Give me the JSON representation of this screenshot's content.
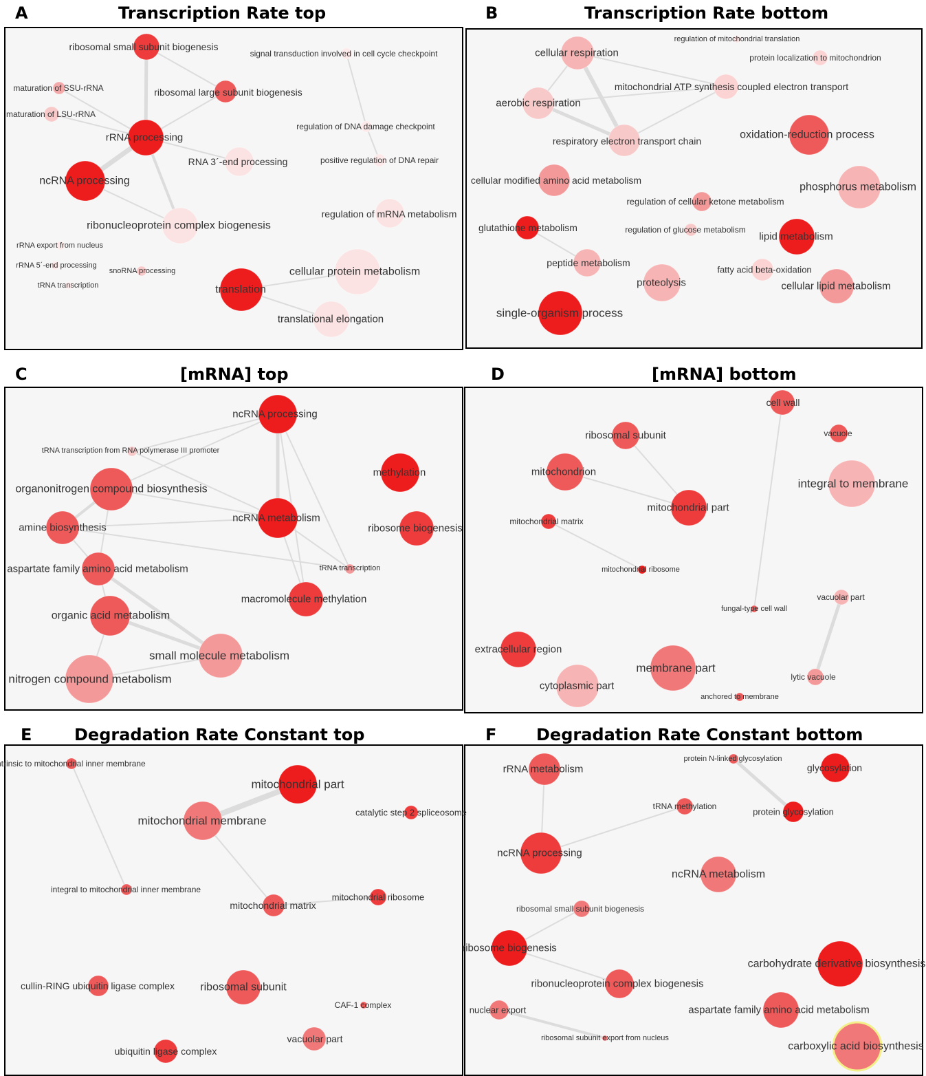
{
  "panels": [
    {
      "letter": "A",
      "title": "Transcription Rate  top",
      "nodes": [
        {
          "id": "a1",
          "label": "ribosomal small subunit biogenesis"
        },
        {
          "id": "a2",
          "label": "maturation of SSU-rRNA"
        },
        {
          "id": "a3",
          "label": "maturation of LSU-rRNA"
        },
        {
          "id": "a4",
          "label": "ribosomal large subunit biogenesis"
        },
        {
          "id": "a5",
          "label": "rRNA processing"
        },
        {
          "id": "a6",
          "label": "ncRNA processing"
        },
        {
          "id": "a7",
          "label": "RNA 3´-end processing"
        },
        {
          "id": "a8",
          "label": "ribonucleoprotein complex biogenesis"
        },
        {
          "id": "a9",
          "label": "signal transduction involved in cell cycle checkpoint"
        },
        {
          "id": "a10",
          "label": "regulation of DNA damage checkpoint"
        },
        {
          "id": "a11",
          "label": "positive regulation of DNA repair"
        },
        {
          "id": "a12",
          "label": "regulation of mRNA metabolism"
        },
        {
          "id": "a13",
          "label": "rRNA export from nucleus"
        },
        {
          "id": "a14",
          "label": "rRNA 5´-end processing"
        },
        {
          "id": "a15",
          "label": "tRNA transcription"
        },
        {
          "id": "a16",
          "label": "snoRNA processing"
        },
        {
          "id": "a17",
          "label": "translation"
        },
        {
          "id": "a18",
          "label": "cellular protein metabolism"
        },
        {
          "id": "a19",
          "label": "translational elongation"
        }
      ],
      "edges": [
        [
          "a1",
          "a5"
        ],
        [
          "a1",
          "a4"
        ],
        [
          "a4",
          "a5"
        ],
        [
          "a5",
          "a6"
        ],
        [
          "a5",
          "a7"
        ],
        [
          "a5",
          "a8"
        ],
        [
          "a2",
          "a5"
        ],
        [
          "a3",
          "a5"
        ],
        [
          "a6",
          "a8"
        ],
        [
          "a9",
          "a10"
        ],
        [
          "a10",
          "a11"
        ],
        [
          "a17",
          "a18"
        ],
        [
          "a17",
          "a19"
        ]
      ]
    },
    {
      "letter": "B",
      "title": "Transcription Rate  bottom",
      "nodes": [
        {
          "id": "b1",
          "label": "cellular respiration"
        },
        {
          "id": "b2",
          "label": "regulation of mitochondrial translation"
        },
        {
          "id": "b3",
          "label": "protein localization to mitochondrion"
        },
        {
          "id": "b4",
          "label": "mitochondrial ATP synthesis coupled electron transport"
        },
        {
          "id": "b5",
          "label": "aerobic respiration"
        },
        {
          "id": "b6",
          "label": "respiratory electron transport chain"
        },
        {
          "id": "b7",
          "label": "oxidation-reduction process"
        },
        {
          "id": "b8",
          "label": "cellular modified amino acid metabolism"
        },
        {
          "id": "b9",
          "label": "phosphorus metabolism"
        },
        {
          "id": "b10",
          "label": "regulation of cellular ketone metabolism"
        },
        {
          "id": "b11",
          "label": "glutathione metabolism"
        },
        {
          "id": "b12",
          "label": "regulation of glucose metabolism"
        },
        {
          "id": "b13",
          "label": "lipid metabolism"
        },
        {
          "id": "b14",
          "label": "peptide metabolism"
        },
        {
          "id": "b15",
          "label": "fatty acid beta-oxidation"
        },
        {
          "id": "b16",
          "label": "proteolysis"
        },
        {
          "id": "b17",
          "label": "cellular lipid metabolism"
        },
        {
          "id": "b18",
          "label": "single-organism process"
        }
      ],
      "edges": [
        [
          "b1",
          "b4"
        ],
        [
          "b1",
          "b5"
        ],
        [
          "b1",
          "b6"
        ],
        [
          "b5",
          "b6"
        ],
        [
          "b4",
          "b6"
        ],
        [
          "b4",
          "b5"
        ],
        [
          "b11",
          "b14"
        ]
      ]
    },
    {
      "letter": "C",
      "title": "[mRNA]  top",
      "nodes": [
        {
          "id": "c1",
          "label": "ncRNA processing"
        },
        {
          "id": "c2",
          "label": "tRNA transcription from RNA polymerase III promoter"
        },
        {
          "id": "c3",
          "label": "methylation"
        },
        {
          "id": "c4",
          "label": "organonitrogen compound biosynthesis"
        },
        {
          "id": "c5",
          "label": "ncRNA metabolism"
        },
        {
          "id": "c6",
          "label": "amine biosynthesis"
        },
        {
          "id": "c7",
          "label": "ribosome biogenesis"
        },
        {
          "id": "c8",
          "label": "aspartate family amino acid metabolism"
        },
        {
          "id": "c9",
          "label": "tRNA transcription"
        },
        {
          "id": "c10",
          "label": "macromolecule methylation"
        },
        {
          "id": "c11",
          "label": "organic acid metabolism"
        },
        {
          "id": "c12",
          "label": "small molecule metabolism"
        },
        {
          "id": "c13",
          "label": "nitrogen compound metabolism"
        }
      ],
      "edges": [
        [
          "c1",
          "c5"
        ],
        [
          "c1",
          "c2"
        ],
        [
          "c1",
          "c4"
        ],
        [
          "c1",
          "c9"
        ],
        [
          "c1",
          "c10"
        ],
        [
          "c2",
          "c5"
        ],
        [
          "c4",
          "c5"
        ],
        [
          "c4",
          "c6"
        ],
        [
          "c4",
          "c8"
        ],
        [
          "c6",
          "c5"
        ],
        [
          "c6",
          "c8"
        ],
        [
          "c6",
          "c9"
        ],
        [
          "c5",
          "c9"
        ],
        [
          "c5",
          "c10"
        ],
        [
          "c8",
          "c11"
        ],
        [
          "c8",
          "c12"
        ],
        [
          "c11",
          "c12"
        ],
        [
          "c12",
          "c13"
        ],
        [
          "c11",
          "c13"
        ]
      ]
    },
    {
      "letter": "D",
      "title": "[mRNA]  bottom",
      "nodes": [
        {
          "id": "d1",
          "label": "cell wall"
        },
        {
          "id": "d2",
          "label": "ribosomal subunit"
        },
        {
          "id": "d3",
          "label": "vacuole"
        },
        {
          "id": "d4",
          "label": "mitochondrion"
        },
        {
          "id": "d5",
          "label": "integral to membrane"
        },
        {
          "id": "d6",
          "label": "mitochondrial part"
        },
        {
          "id": "d7",
          "label": "mitochondrial matrix"
        },
        {
          "id": "d8",
          "label": "mitochondrial ribosome"
        },
        {
          "id": "d9",
          "label": "vacuolar part"
        },
        {
          "id": "d10",
          "label": "fungal-type cell wall"
        },
        {
          "id": "d11",
          "label": "extracellular region"
        },
        {
          "id": "d12",
          "label": "membrane part"
        },
        {
          "id": "d13",
          "label": "lytic vacuole"
        },
        {
          "id": "d14",
          "label": "cytoplasmic part"
        },
        {
          "id": "d15",
          "label": "anchored to membrane"
        }
      ],
      "edges": [
        [
          "d2",
          "d6"
        ],
        [
          "d4",
          "d6"
        ],
        [
          "d7",
          "d8"
        ],
        [
          "d1",
          "d10"
        ],
        [
          "d9",
          "d13"
        ]
      ]
    },
    {
      "letter": "E",
      "title": "Degradation Rate Constant  top",
      "nodes": [
        {
          "id": "e1",
          "label": "intrinsic to mitochondrial inner membrane"
        },
        {
          "id": "e2",
          "label": "mitochondrial part"
        },
        {
          "id": "e3",
          "label": "mitochondrial membrane"
        },
        {
          "id": "e4",
          "label": "catalytic step 2 spliceosome"
        },
        {
          "id": "e5",
          "label": "integral to mitochondrial inner membrane"
        },
        {
          "id": "e6",
          "label": "mitochondrial matrix"
        },
        {
          "id": "e7",
          "label": "mitochondrial ribosome"
        },
        {
          "id": "e8",
          "label": "cullin-RING ubiquitin ligase complex"
        },
        {
          "id": "e9",
          "label": "ribosomal subunit"
        },
        {
          "id": "e10",
          "label": "CAF-1 complex"
        },
        {
          "id": "e11",
          "label": "vacuolar part"
        },
        {
          "id": "e12",
          "label": "ubiquitin ligase complex"
        }
      ],
      "edges": [
        [
          "e2",
          "e3"
        ],
        [
          "e1",
          "e5"
        ],
        [
          "e3",
          "e6"
        ],
        [
          "e6",
          "e7"
        ]
      ]
    },
    {
      "letter": "F",
      "title": "Degradation Rate Constant  bottom",
      "nodes": [
        {
          "id": "f1",
          "label": "rRNA metabolism"
        },
        {
          "id": "f2",
          "label": "protein N-linked glycosylation"
        },
        {
          "id": "f3",
          "label": "glycosylation"
        },
        {
          "id": "f4",
          "label": "tRNA methylation"
        },
        {
          "id": "f5",
          "label": "protein glycosylation"
        },
        {
          "id": "f6",
          "label": "ncRNA processing"
        },
        {
          "id": "f7",
          "label": "ncRNA metabolism"
        },
        {
          "id": "f8",
          "label": "ribosomal small subunit biogenesis"
        },
        {
          "id": "f9",
          "label": "ribosome biogenesis"
        },
        {
          "id": "f10",
          "label": "carbohydrate derivative biosynthesis"
        },
        {
          "id": "f11",
          "label": "ribonucleoprotein complex biogenesis"
        },
        {
          "id": "f12",
          "label": "nuclear export"
        },
        {
          "id": "f13",
          "label": "aspartate family amino acid metabolism"
        },
        {
          "id": "f14",
          "label": "ribosomal subunit export from nucleus"
        },
        {
          "id": "f15",
          "label": "carboxylic acid biosynthesis"
        }
      ],
      "edges": [
        [
          "f1",
          "f6"
        ],
        [
          "f6",
          "f4"
        ],
        [
          "f2",
          "f5"
        ],
        [
          "f8",
          "f9"
        ],
        [
          "f9",
          "f11"
        ],
        [
          "f12",
          "f14"
        ]
      ]
    }
  ]
}
